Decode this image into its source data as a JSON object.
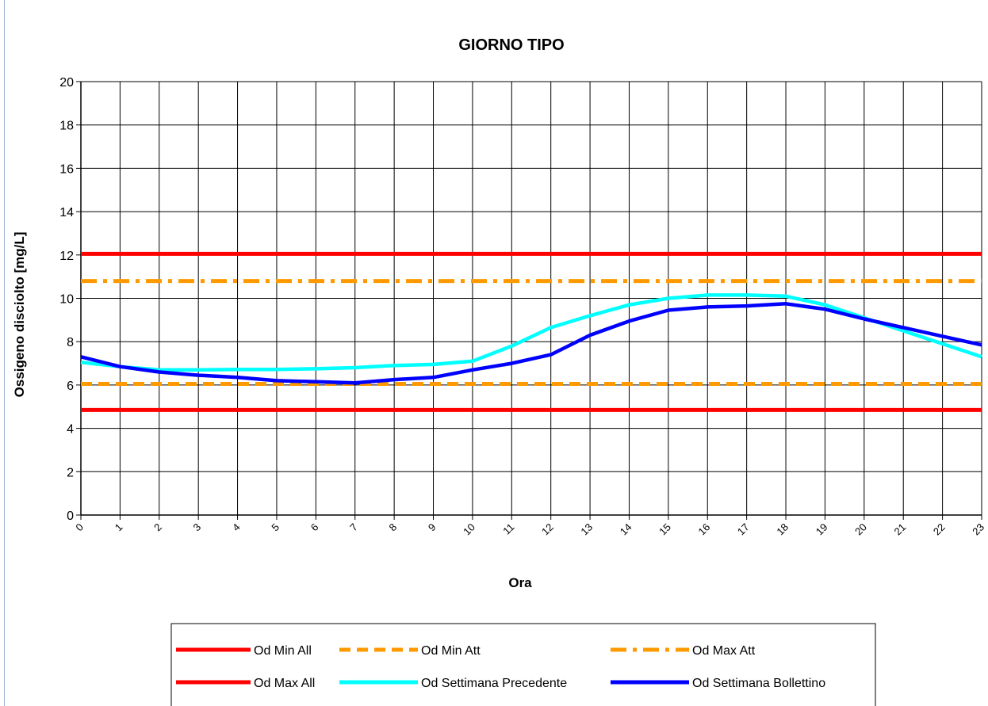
{
  "chart_data": {
    "type": "line",
    "title": "GIORNO TIPO",
    "xlabel": "Ora",
    "ylabel": "Ossigeno disciolto [mg/L]",
    "ylim": [
      0,
      20
    ],
    "yticks": [
      0,
      2,
      4,
      6,
      8,
      10,
      12,
      14,
      16,
      18,
      20
    ],
    "x": [
      0,
      1,
      2,
      3,
      4,
      5,
      6,
      7,
      8,
      9,
      10,
      11,
      12,
      13,
      14,
      15,
      16,
      17,
      18,
      19,
      20,
      21,
      22,
      23
    ],
    "grid": true,
    "legend_position": "bottom",
    "series": [
      {
        "name": "Od Min All",
        "color": "#ff0000",
        "style": "solid",
        "values": [
          4.85,
          4.85,
          4.85,
          4.85,
          4.85,
          4.85,
          4.85,
          4.85,
          4.85,
          4.85,
          4.85,
          4.85,
          4.85,
          4.85,
          4.85,
          4.85,
          4.85,
          4.85,
          4.85,
          4.85,
          4.85,
          4.85,
          4.85,
          4.85
        ]
      },
      {
        "name": "Od Min Att",
        "color": "#ff9900",
        "style": "dash",
        "values": [
          6.05,
          6.05,
          6.05,
          6.05,
          6.05,
          6.05,
          6.05,
          6.05,
          6.05,
          6.05,
          6.05,
          6.05,
          6.05,
          6.05,
          6.05,
          6.05,
          6.05,
          6.05,
          6.05,
          6.05,
          6.05,
          6.05,
          6.05,
          6.05
        ]
      },
      {
        "name": "Od Max Att",
        "color": "#ff9900",
        "style": "dashdot",
        "values": [
          10.8,
          10.8,
          10.8,
          10.8,
          10.8,
          10.8,
          10.8,
          10.8,
          10.8,
          10.8,
          10.8,
          10.8,
          10.8,
          10.8,
          10.8,
          10.8,
          10.8,
          10.8,
          10.8,
          10.8,
          10.8,
          10.8,
          10.8,
          10.8
        ]
      },
      {
        "name": "Od Max All",
        "color": "#ff0000",
        "style": "solid",
        "values": [
          12.05,
          12.05,
          12.05,
          12.05,
          12.05,
          12.05,
          12.05,
          12.05,
          12.05,
          12.05,
          12.05,
          12.05,
          12.05,
          12.05,
          12.05,
          12.05,
          12.05,
          12.05,
          12.05,
          12.05,
          12.05,
          12.05,
          12.05,
          12.05
        ]
      },
      {
        "name": "Od Settimana Precedente",
        "color": "#00ffff",
        "style": "solid",
        "values": [
          7.05,
          6.85,
          6.7,
          6.7,
          6.72,
          6.72,
          6.75,
          6.8,
          6.9,
          6.95,
          7.1,
          7.8,
          8.65,
          9.2,
          9.7,
          10.0,
          10.15,
          10.15,
          10.1,
          9.7,
          9.1,
          8.5,
          7.9,
          7.3
        ]
      },
      {
        "name": "Od Settimana Bollettino",
        "color": "#0000ff",
        "style": "solid",
        "values": [
          7.3,
          6.85,
          6.6,
          6.45,
          6.35,
          6.2,
          6.15,
          6.1,
          6.25,
          6.35,
          6.7,
          7.0,
          7.4,
          8.3,
          8.95,
          9.45,
          9.6,
          9.65,
          9.75,
          9.5,
          9.05,
          8.65,
          8.25,
          7.85
        ]
      }
    ]
  }
}
